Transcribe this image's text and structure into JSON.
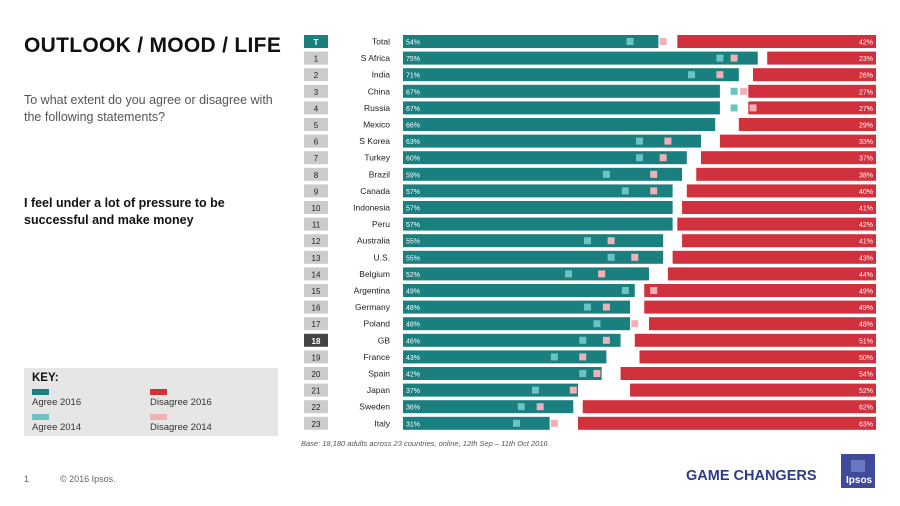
{
  "title": "OUTLOOK / MOOD / LIFE",
  "question": "To what extent do you agree or disagree with the following statements?",
  "statement": "I feel under a lot of pressure to be successful and make money",
  "key": {
    "title": "KEY:",
    "agree_2016": "Agree 2016",
    "disagree_2016": "Disagree 2016",
    "agree_2014": "Agree 2014",
    "disagree_2014": "Disagree 2014"
  },
  "colors": {
    "agree_2016": "#1a7f7f",
    "disagree_2016": "#d1303d",
    "agree_2014": "#6cc3c3",
    "disagree_2014": "#f0b1b6",
    "index_box": "#cccccc",
    "index_box_highlight": "#444444"
  },
  "base_note": "Base: 18,180 adults across 23 countries, online, 12th Sep – 11th Oct 2016",
  "footer": {
    "page": "1",
    "copyright": "© 2016 Ipsos.",
    "brand": "GAME CHANGERS",
    "logo": "Ipsos"
  },
  "chart_data": {
    "type": "bar",
    "orientation": "horizontal-diverging",
    "title": "I feel under a lot of pressure to be successful and make money",
    "xlim": [
      0,
      100
    ],
    "series_names": [
      "Agree 2016",
      "Disagree 2016",
      "Agree 2014",
      "Disagree 2014"
    ],
    "rows": [
      {
        "index": "T",
        "country": "Total",
        "agree": 54,
        "disagree": 42,
        "agree_label": "54%",
        "disagree_label": "42%",
        "agree_2014": 48,
        "disagree_2014": 45
      },
      {
        "index": "1",
        "country": "S Africa",
        "agree": 75,
        "disagree": 23,
        "agree_label": "75%",
        "disagree_label": "23%",
        "agree_2014": 67,
        "disagree_2014": 30
      },
      {
        "index": "2",
        "country": "India",
        "agree": 71,
        "disagree": 26,
        "agree_label": "71%",
        "disagree_label": "26%",
        "agree_2014": 61,
        "disagree_2014": 33
      },
      {
        "index": "3",
        "country": "China",
        "agree": 67,
        "disagree": 27,
        "agree_label": "67%",
        "disagree_label": "27%",
        "agree_2014": 70,
        "disagree_2014": 28
      },
      {
        "index": "4",
        "country": "Russia",
        "agree": 67,
        "disagree": 27,
        "agree_label": "67%",
        "disagree_label": "27%",
        "agree_2014": 70,
        "disagree_2014": 26
      },
      {
        "index": "5",
        "country": "Mexico",
        "agree": 66,
        "disagree": 29,
        "agree_label": "66%",
        "disagree_label": "29%"
      },
      {
        "index": "6",
        "country": "S Korea",
        "agree": 63,
        "disagree": 33,
        "agree_label": "63%",
        "disagree_label": "33%",
        "agree_2014": 50,
        "disagree_2014": 44
      },
      {
        "index": "7",
        "country": "Turkey",
        "agree": 60,
        "disagree": 37,
        "agree_label": "60%",
        "disagree_label": "37%",
        "agree_2014": 50,
        "disagree_2014": 45
      },
      {
        "index": "8",
        "country": "Brazil",
        "agree": 59,
        "disagree": 38,
        "agree_label": "59%",
        "disagree_label": "38%",
        "agree_2014": 43,
        "disagree_2014": 47
      },
      {
        "index": "9",
        "country": "Canada",
        "agree": 57,
        "disagree": 40,
        "agree_label": "57%",
        "disagree_label": "40%",
        "agree_2014": 47,
        "disagree_2014": 47
      },
      {
        "index": "10",
        "country": "Indonesia",
        "agree": 57,
        "disagree": 41,
        "agree_label": "57%",
        "disagree_label": "41%"
      },
      {
        "index": "11",
        "country": "Peru",
        "agree": 57,
        "disagree": 42,
        "agree_label": "57%",
        "disagree_label": "42%"
      },
      {
        "index": "12",
        "country": "Australia",
        "agree": 55,
        "disagree": 41,
        "agree_label": "55%",
        "disagree_label": "41%",
        "agree_2014": 39,
        "disagree_2014": 56
      },
      {
        "index": "13",
        "country": "U.S.",
        "agree": 55,
        "disagree": 43,
        "agree_label": "55%",
        "disagree_label": "43%",
        "agree_2014": 44,
        "disagree_2014": 51
      },
      {
        "index": "14",
        "country": "Belgium",
        "agree": 52,
        "disagree": 44,
        "agree_label": "52%",
        "disagree_label": "44%",
        "agree_2014": 35,
        "disagree_2014": 58
      },
      {
        "index": "15",
        "country": "Argentina",
        "agree": 49,
        "disagree": 49,
        "agree_label": "49%",
        "disagree_label": "49%",
        "agree_2014": 47,
        "disagree_2014": 47
      },
      {
        "index": "16",
        "country": "Germany",
        "agree": 48,
        "disagree": 49,
        "agree_label": "48%",
        "disagree_label": "49%",
        "agree_2014": 39,
        "disagree_2014": 57
      },
      {
        "index": "17",
        "country": "Poland",
        "agree": 48,
        "disagree": 48,
        "agree_label": "48%",
        "disagree_label": "48%",
        "agree_2014": 41,
        "disagree_2014": 51
      },
      {
        "index": "18",
        "country": "GB",
        "agree": 46,
        "disagree": 51,
        "agree_label": "46%",
        "disagree_label": "51%",
        "agree_2014": 38,
        "disagree_2014": 57
      },
      {
        "index": "19",
        "country": "France",
        "agree": 43,
        "disagree": 50,
        "agree_label": "43%",
        "disagree_label": "50%",
        "agree_2014": 32,
        "disagree_2014": 62
      },
      {
        "index": "20",
        "country": "Spain",
        "agree": 42,
        "disagree": 54,
        "agree_label": "42%",
        "disagree_label": "54%",
        "agree_2014": 38,
        "disagree_2014": 59
      },
      {
        "index": "21",
        "country": "Japan",
        "agree": 37,
        "disagree": 52,
        "agree_label": "37%",
        "disagree_label": "52%",
        "agree_2014": 28,
        "disagree_2014": 64
      },
      {
        "index": "22",
        "country": "Sweden",
        "agree": 36,
        "disagree": 62,
        "agree_label": "36%",
        "disagree_label": "62%",
        "agree_2014": 25,
        "disagree_2014": 71
      },
      {
        "index": "23",
        "country": "Italy",
        "agree": 31,
        "disagree": 63,
        "agree_label": "31%",
        "disagree_label": "63%",
        "agree_2014": 24,
        "disagree_2014": 68
      }
    ],
    "highlight_index": [
      "T",
      "18"
    ]
  }
}
